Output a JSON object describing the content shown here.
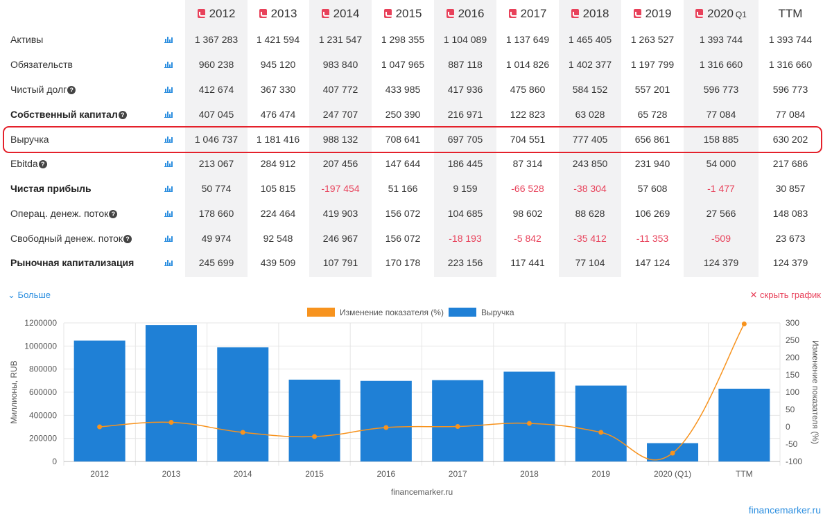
{
  "table": {
    "columns": [
      {
        "year": "2012",
        "sub": ""
      },
      {
        "year": "2013",
        "sub": ""
      },
      {
        "year": "2014",
        "sub": ""
      },
      {
        "year": "2015",
        "sub": ""
      },
      {
        "year": "2016",
        "sub": ""
      },
      {
        "year": "2017",
        "sub": ""
      },
      {
        "year": "2018",
        "sub": ""
      },
      {
        "year": "2019",
        "sub": ""
      },
      {
        "year": "2020",
        "sub": "Q1"
      },
      {
        "year": "TTM",
        "sub": ""
      }
    ],
    "rows": [
      {
        "label": "Активы",
        "bold": false,
        "help": false,
        "values": [
          "1 367 283",
          "1 421 594",
          "1 231 547",
          "1 298 355",
          "1 104 089",
          "1 137 649",
          "1 465 405",
          "1 263 527",
          "1 393 744",
          "1 393 744"
        ]
      },
      {
        "label": "Обязательств",
        "bold": false,
        "help": false,
        "values": [
          "960 238",
          "945 120",
          "983 840",
          "1 047 965",
          "887 118",
          "1 014 826",
          "1 402 377",
          "1 197 799",
          "1 316 660",
          "1 316 660"
        ]
      },
      {
        "label": "Чистый долг",
        "bold": false,
        "help": true,
        "values": [
          "412 674",
          "367 330",
          "407 772",
          "433 985",
          "417 936",
          "475 860",
          "584 152",
          "557 201",
          "596 773",
          "596 773"
        ]
      },
      {
        "label": "Собственный капитал",
        "bold": true,
        "help": true,
        "values": [
          "407 045",
          "476 474",
          "247 707",
          "250 390",
          "216 971",
          "122 823",
          "63 028",
          "65 728",
          "77 084",
          "77 084"
        ]
      },
      {
        "label": "Выручка",
        "bold": false,
        "help": false,
        "values": [
          "1 046 737",
          "1 181 416",
          "988 132",
          "708 641",
          "697 705",
          "704 551",
          "777 405",
          "656 861",
          "158 885",
          "630 202"
        ]
      },
      {
        "label": "Ebitda",
        "bold": false,
        "help": true,
        "values": [
          "213 067",
          "284 912",
          "207 456",
          "147 644",
          "186 445",
          "87 314",
          "243 850",
          "231 940",
          "54 000",
          "217 686"
        ]
      },
      {
        "label": "Чистая прибыль",
        "bold": true,
        "help": false,
        "values": [
          "50 774",
          "105 815",
          "-197 454",
          "51 166",
          "9 159",
          "-66 528",
          "-38 304",
          "57 608",
          "-1 477",
          "30 857"
        ]
      },
      {
        "label": "Операц. денеж. поток",
        "bold": false,
        "help": true,
        "values": [
          "178 660",
          "224 464",
          "419 903",
          "156 072",
          "104 685",
          "98 602",
          "88 628",
          "106 269",
          "27 566",
          "148 083"
        ]
      },
      {
        "label": "Свободный денеж. поток",
        "bold": false,
        "help": true,
        "values": [
          "49 974",
          "92 548",
          "246 967",
          "156 072",
          "-18 193",
          "-5 842",
          "-35 412",
          "-11 353",
          "-509",
          "23 673"
        ]
      },
      {
        "label": "Рыночная капитализация",
        "bold": true,
        "help": false,
        "values": [
          "245 699",
          "439 509",
          "107 791",
          "170 178",
          "223 156",
          "117 441",
          "77 104",
          "147 124",
          "124 379",
          "124 379"
        ]
      }
    ],
    "highlighted_row": "Выручка"
  },
  "links": {
    "more": "Больше",
    "hide_chart": "скрыть график",
    "site": "financemarker.ru"
  },
  "colors": {
    "bar": "#1f80d6",
    "line": "#f7931e",
    "negative": "#e8415a",
    "highlight": "#e4212b",
    "accent": "#2d8fe0"
  },
  "chart_data": {
    "type": "bar",
    "categories": [
      "2012",
      "2013",
      "2014",
      "2015",
      "2016",
      "2017",
      "2018",
      "2019",
      "2020 (Q1)",
      "TTM"
    ],
    "series": [
      {
        "name": "Выручка",
        "type": "bar",
        "axis": "left",
        "values": [
          1046737,
          1181416,
          988132,
          708641,
          697705,
          704551,
          777405,
          656861,
          158885,
          630202
        ]
      },
      {
        "name": "Изменение показателя (%)",
        "type": "line",
        "axis": "right",
        "values": [
          0,
          13,
          -16,
          -28,
          -2,
          1,
          10,
          -16,
          -76,
          297
        ]
      }
    ],
    "ylabel": "Миллионы, RUB",
    "y2label": "Изменение показателя (%)",
    "ylim": [
      0,
      1200000
    ],
    "yticks": [
      0,
      200000,
      400000,
      600000,
      800000,
      1000000,
      1200000
    ],
    "y2lim": [
      -100,
      300
    ],
    "y2ticks": [
      -100,
      -50,
      0,
      50,
      100,
      150,
      200,
      250,
      300
    ],
    "xlabel": "financemarker.ru",
    "legend": "top",
    "grid": true
  }
}
